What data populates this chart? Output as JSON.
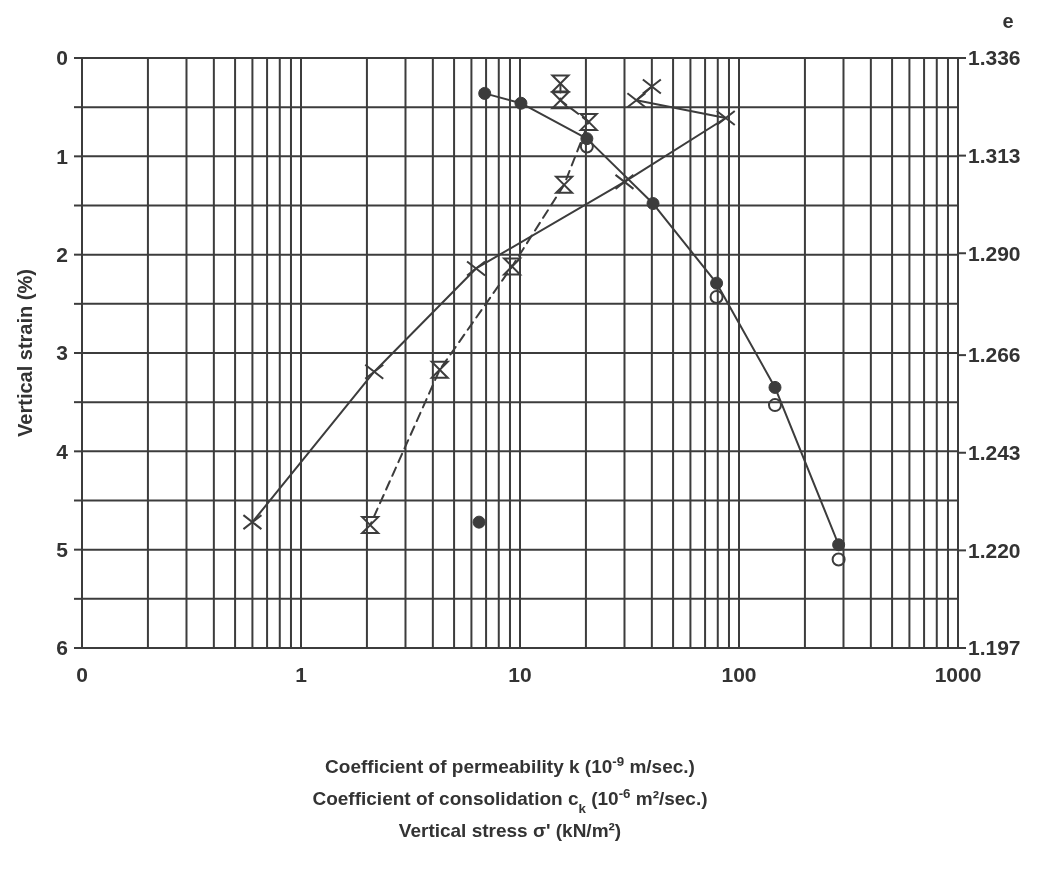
{
  "chart_data": {
    "type": "line",
    "xlabel": "Coefficient of permeability k (10$^{-9}$ m/sec.)\nCoefficient of consolidation c$_{k}$ (10$^{-6}$ m²/sec.)\nVertical stress σ' (kN/m²)",
    "ylabel": "Vertical strain (%)",
    "y2label": "e",
    "log": "x",
    "grid": true,
    "xlim": [
      0.1,
      1000
    ],
    "ylim": [
      6,
      0
    ],
    "y2lim": [
      1.197,
      1.336
    ],
    "xticks": [
      {
        "value": 0.1,
        "label": "0"
      },
      {
        "value": 0.2,
        "label": null
      },
      {
        "value": 0.3,
        "label": null
      },
      {
        "value": 0.4,
        "label": null
      },
      {
        "value": 0.5,
        "label": null
      },
      {
        "value": 0.6,
        "label": null
      },
      {
        "value": 0.7,
        "label": null
      },
      {
        "value": 0.8,
        "label": null
      },
      {
        "value": 0.9,
        "label": null
      },
      1,
      {
        "value": 2,
        "label": null
      },
      {
        "value": 3,
        "label": null
      },
      {
        "value": 4,
        "label": null
      },
      {
        "value": 5,
        "label": null
      },
      {
        "value": 6,
        "label": null
      },
      {
        "value": 7,
        "label": null
      },
      {
        "value": 8,
        "label": null
      },
      {
        "value": 9,
        "label": null
      },
      10,
      {
        "value": 20,
        "label": null
      },
      {
        "value": 30,
        "label": null
      },
      {
        "value": 40,
        "label": null
      },
      {
        "value": 50,
        "label": null
      },
      {
        "value": 60,
        "label": null
      },
      {
        "value": 70,
        "label": null
      },
      {
        "value": 80,
        "label": null
      },
      {
        "value": 90,
        "label": null
      },
      100,
      {
        "value": 200,
        "label": null
      },
      {
        "value": 300,
        "label": null
      },
      {
        "value": 400,
        "label": null
      },
      {
        "value": 500,
        "label": null
      },
      {
        "value": 600,
        "label": null
      },
      {
        "value": 700,
        "label": null
      },
      {
        "value": 800,
        "label": null
      },
      {
        "value": 900,
        "label": null
      },
      1000
    ],
    "yticks": [
      0,
      {
        "value": 0.5,
        "label": null
      },
      1,
      {
        "value": 1.5,
        "label": null
      },
      2,
      {
        "value": 2.5,
        "label": null
      },
      3,
      {
        "value": 3.5,
        "label": null
      },
      4,
      {
        "value": 4.5,
        "label": null
      },
      5,
      {
        "value": 5.5,
        "label": null
      },
      6
    ],
    "y2ticks": [
      1.336,
      1.313,
      {
        "value": 1.29,
        "label": "1.290"
      },
      1.266,
      1.243,
      {
        "value": 1.22,
        "label": "1.220"
      },
      1.197
    ],
    "series": [
      {
        "marker": "circle",
        "line_style": "solid",
        "color": "#3c3c3c",
        "x": [
          6.9,
          10.1,
          20.2,
          40.5,
          79,
          146,
          285,
          null,
          6.5
        ],
        "values": [
          0.36,
          0.46,
          0.82,
          1.48,
          2.29,
          3.35,
          4.95,
          null,
          4.72
        ]
      },
      {
        "type": "scatter",
        "marker": "circle",
        "color": "#3c3c3c",
        "x": [
          20.2,
          79,
          146,
          285
        ],
        "values": [
          0.9,
          2.43,
          3.53,
          5.1
        ]
      },
      {
        "marker": "cross",
        "line_style": "solid",
        "color": "#3c3c3c",
        "x": [
          40,
          34,
          87,
          30,
          6.3,
          2.16,
          0.6
        ],
        "values": [
          0.29,
          0.43,
          0.61,
          1.26,
          2.14,
          3.19,
          4.72
        ]
      },
      {
        "marker": "diamond",
        "line_style": "dashed",
        "color": "#3c3c3c",
        "x": [
          15.3,
          15.3,
          20.6,
          15.9,
          9.2,
          4.3,
          2.07
        ],
        "values": [
          0.26,
          0.43,
          0.65,
          1.29,
          2.12,
          3.17,
          4.75
        ]
      }
    ]
  }
}
